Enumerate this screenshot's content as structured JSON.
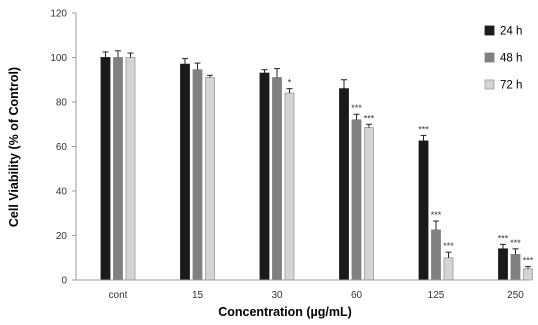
{
  "chart_data": {
    "type": "bar",
    "xlabel": "Concentration (µg/mL)",
    "ylabel": "Cell Viability  (% of Control)",
    "ylim": [
      0,
      120
    ],
    "yticks": [
      "0",
      "20",
      "40",
      "60",
      "80",
      "100",
      "120"
    ],
    "categories": [
      "cont",
      "15",
      "30",
      "60",
      "125",
      "250"
    ],
    "series": [
      {
        "name": "24 h",
        "color": "#1a1a1a",
        "values": [
          100,
          97,
          93,
          86,
          62.5,
          14
        ],
        "errors": [
          2.5,
          2.5,
          1.5,
          4,
          2.5,
          2
        ],
        "significance": [
          "",
          "",
          "",
          "",
          "***",
          "***"
        ]
      },
      {
        "name": "48 h",
        "color": "#808080",
        "values": [
          100,
          94.5,
          91,
          72,
          22.5,
          11.5
        ],
        "errors": [
          3,
          3,
          4,
          2.5,
          4,
          2.5
        ],
        "significance": [
          "",
          "",
          "",
          "***",
          "***",
          "***"
        ]
      },
      {
        "name": "72 h",
        "color": "#d4d4d4",
        "values": [
          100,
          91,
          84,
          68.5,
          10,
          5
        ],
        "errors": [
          2,
          1,
          2,
          1.5,
          2.5,
          1
        ],
        "significance": [
          "",
          "",
          "*",
          "***",
          "***",
          "***"
        ]
      }
    ],
    "legend": "right",
    "grid": false
  }
}
